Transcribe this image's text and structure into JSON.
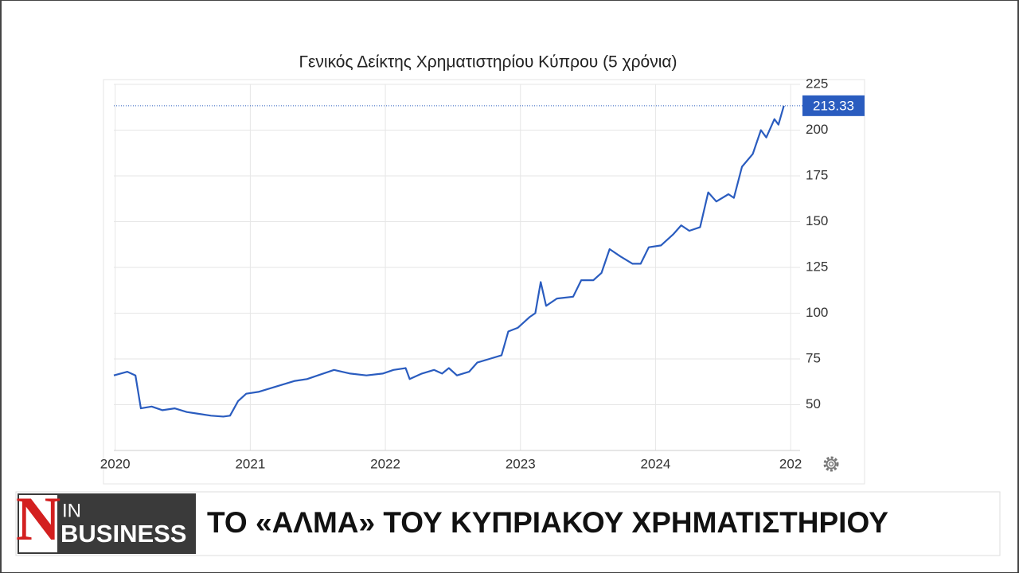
{
  "chart_data": {
    "type": "line",
    "title": "Γενικός Δείκτης Χρηματιστηρίου Κύπρου (5 χρόνια)",
    "x": [
      2019.99,
      2020.09,
      2020.15,
      2020.19,
      2020.27,
      2020.35,
      2020.44,
      2020.53,
      2020.62,
      2020.71,
      2020.8,
      2020.85,
      2020.91,
      2020.97,
      2021.06,
      2021.15,
      2021.24,
      2021.33,
      2021.42,
      2021.5,
      2021.62,
      2021.74,
      2021.86,
      2021.98,
      2022.06,
      2022.15,
      2022.18,
      2022.27,
      2022.36,
      2022.42,
      2022.47,
      2022.53,
      2022.62,
      2022.68,
      2022.77,
      2022.86,
      2022.91,
      2022.98,
      2023.07,
      2023.11,
      2023.15,
      2023.19,
      2023.27,
      2023.39,
      2023.45,
      2023.54,
      2023.6,
      2023.66,
      2023.74,
      2023.83,
      2023.89,
      2023.95,
      2024.04,
      2024.13,
      2024.19,
      2024.25,
      2024.33,
      2024.39,
      2024.45,
      2024.54,
      2024.58,
      2024.64,
      2024.72,
      2024.78,
      2024.82,
      2024.88,
      2024.91,
      2024.95
    ],
    "values": [
      66,
      68,
      66,
      48,
      49,
      47,
      48,
      46,
      45,
      44,
      43.5,
      44,
      52,
      56,
      57,
      59,
      61,
      63,
      64,
      66,
      69,
      67,
      66,
      67,
      69,
      70,
      64,
      67,
      69,
      67,
      70,
      66,
      68,
      73,
      75,
      77,
      90,
      92,
      98,
      100,
      117,
      104,
      108,
      109,
      118,
      118,
      122,
      135,
      131,
      127,
      127,
      136,
      137,
      143,
      148,
      145,
      147,
      166,
      161,
      165,
      163,
      180,
      187,
      200,
      196,
      206,
      203,
      213.33
    ],
    "color": "#2a5cbf",
    "xlim": [
      2019.99,
      2025.07
    ],
    "xticks": [
      2020,
      2021,
      2022,
      2023,
      2024,
      {
        "value": 2025,
        "label": "202"
      }
    ],
    "ylim": [
      25,
      225
    ],
    "yticks": [
      50,
      75,
      100,
      125,
      150,
      175,
      200,
      225
    ],
    "grid": true
  },
  "banner": {
    "logo_letter": "N",
    "logo_top": "IN",
    "logo_bottom": "BUSINESS",
    "headline": "ΤΟ «ΑΛΜΑ» ΤΟΥ ΚΥΠΡΙΑΚΟΥ ΧΡΗΜΑΤΙΣΤΗΡΙΟΥ"
  }
}
